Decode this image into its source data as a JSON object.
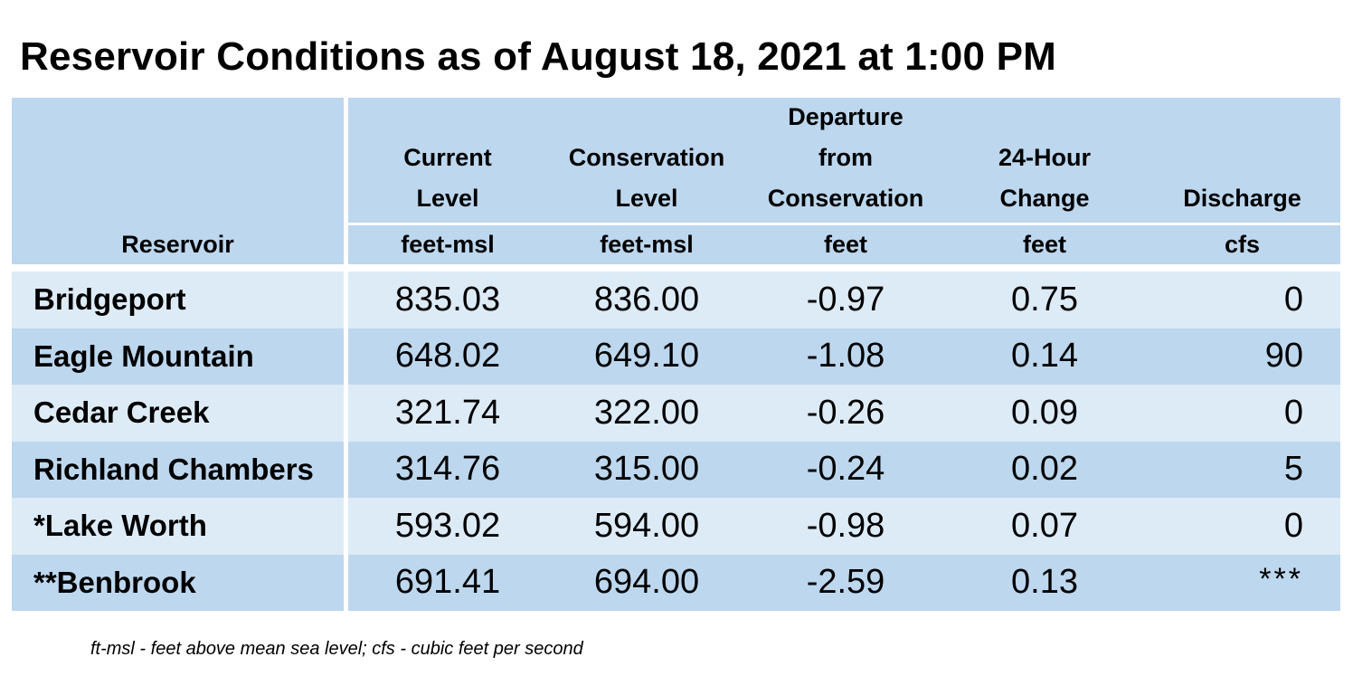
{
  "title": "Reservoir Conditions as of August 18, 2021 at 1:00 PM",
  "headers": {
    "reservoir": "Reservoir",
    "current_level": [
      "Current",
      "Level"
    ],
    "conservation_level": [
      "Conservation",
      "Level"
    ],
    "departure": [
      "Departure",
      "from",
      "Conservation"
    ],
    "change": [
      "24-Hour",
      "Change"
    ],
    "discharge": [
      "Discharge"
    ],
    "units": [
      "feet-msl",
      "feet-msl",
      "feet",
      "feet",
      "cfs"
    ]
  },
  "rows": [
    {
      "name": "Bridgeport",
      "current": "835.03",
      "conservation": "836.00",
      "departure": "-0.97",
      "change": "0.75",
      "discharge": "0"
    },
    {
      "name": "Eagle Mountain",
      "current": "648.02",
      "conservation": "649.10",
      "departure": "-1.08",
      "change": "0.14",
      "discharge": "90"
    },
    {
      "name": "Cedar Creek",
      "current": "321.74",
      "conservation": "322.00",
      "departure": "-0.26",
      "change": "0.09",
      "discharge": "0"
    },
    {
      "name": "Richland Chambers",
      "current": "314.76",
      "conservation": "315.00",
      "departure": "-0.24",
      "change": "0.02",
      "discharge": "5"
    },
    {
      "name": "*Lake Worth",
      "current": "593.02",
      "conservation": "594.00",
      "departure": "-0.98",
      "change": "0.07",
      "discharge": "0"
    },
    {
      "name": "**Benbrook",
      "current": "691.41",
      "conservation": "694.00",
      "departure": "-2.59",
      "change": "0.13",
      "discharge": "***"
    }
  ],
  "footnote": "ft-msl - feet above mean sea level; cfs - cubic feet per second",
  "colors": {
    "header_bg": "#bdd7ee",
    "row_light": "#ddebf7",
    "row_dark": "#bdd7ee"
  }
}
